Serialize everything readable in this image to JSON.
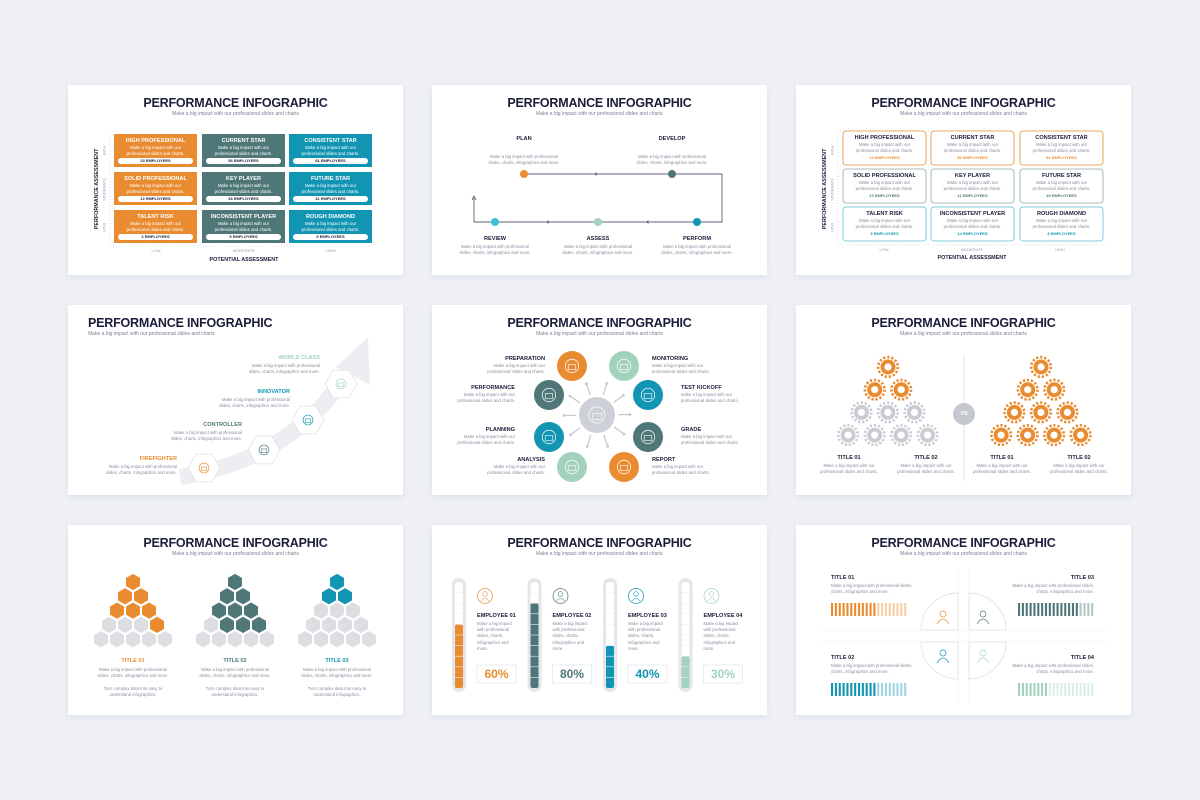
{
  "palette": {
    "orange": "#e98c31",
    "dark_teal": "#4f7778",
    "teal": "#1195b3",
    "mint": "#a3d2bc",
    "gray": "#d9dbe0",
    "navy": "#1b1d3a"
  },
  "common": {
    "title": "PERFORMANCE INFOGRAPHIC",
    "subtitle": "Make a big impact with our professional slides and charts",
    "desc": "Make a big impact with our professional slides and charts.",
    "desc_more": "Make a big impact with professional slides, charts, infographics and more.",
    "turn": "Turn complex data into easy to understand infographics."
  },
  "matrix_filled": {
    "y_axis": "PERFORMANCE ASSESSMENT",
    "x_axis": "POTENTIAL ASSESSMENT",
    "y_ticks": [
      "HIGH",
      "MODERATE",
      "LOW"
    ],
    "x_ticks": [
      "LOW",
      "MODERATE",
      "HIGH"
    ],
    "cells": [
      {
        "title": "HIGH PROFESSIONAL",
        "count": "23 EMPLOYEES"
      },
      {
        "title": "CURRENT STAR",
        "count": "56 EMPLOYEES"
      },
      {
        "title": "CONSISTENT STAR",
        "count": "81 EMPLOYEES"
      },
      {
        "title": "SOLID PROFESSIONAL",
        "count": "12 EMPLOYEES"
      },
      {
        "title": "KEY PLAYER",
        "count": "36 EMPLOYEES"
      },
      {
        "title": "FUTURE STAR",
        "count": "41 EMPLOYEES"
      },
      {
        "title": "TALENT RISK",
        "count": "2 EMPLOYEES"
      },
      {
        "title": "INCONSISTENT PLAYER",
        "count": "5 EMPLOYEES"
      },
      {
        "title": "ROUGH DIAMOND",
        "count": "9 EMPLOYEES"
      }
    ]
  },
  "process": {
    "steps": [
      {
        "label": "PLAN"
      },
      {
        "label": "DEVELOP"
      },
      {
        "label": "REVIEW"
      },
      {
        "label": "ASSESS"
      },
      {
        "label": "PERFORM"
      }
    ],
    "desc": "Make a big impact with professional slides, charts, infographics and more."
  },
  "matrix_outline": {
    "y_axis": "PERFORMANCE ASSESSMENT",
    "x_axis": "POTENTIAL ASSESSMENT",
    "y_ticks": [
      "HIGH",
      "MODERATE",
      "LOW"
    ],
    "x_ticks": [
      "LOW",
      "MODERATE",
      "HIGH"
    ],
    "cells": [
      {
        "title": "HIGH PROFESSIONAL",
        "count": "23 EMPLOYEES"
      },
      {
        "title": "CURRENT STAR",
        "count": "56 EMPLOYEES"
      },
      {
        "title": "CONSISTENT STAR",
        "count": "81 EMPLOYEES"
      },
      {
        "title": "SOLID PROFESSIONAL",
        "count": "23 EMPLOYEES"
      },
      {
        "title": "KEY PLAYER",
        "count": "11 EMPLOYEES"
      },
      {
        "title": "FUTURE STAR",
        "count": "45 EMPLOYEES"
      },
      {
        "title": "TALENT RISK",
        "count": "3 EMPLOYEES"
      },
      {
        "title": "INCONSISTENT PLAYER",
        "count": "14 EMPLOYEES"
      },
      {
        "title": "ROUGH DIAMOND",
        "count": "8 EMPLOYEES"
      }
    ]
  },
  "staircase": {
    "levels": [
      {
        "label": "FIREFIGHTER",
        "color": "#e98c31",
        "icon": "presentation-icon"
      },
      {
        "label": "CONTROLLER",
        "color": "#4f7778",
        "icon": "team-icon"
      },
      {
        "label": "INNOVATOR",
        "color": "#1195b3",
        "icon": "globe-monitor-icon"
      },
      {
        "label": "WORLD CLASS",
        "color": "#a3d2bc",
        "icon": "people-award-icon"
      }
    ]
  },
  "cycle": {
    "items": [
      {
        "label": "PREPARATION",
        "color": "#e98c31",
        "icon": "laptop-chart-icon"
      },
      {
        "label": "MONITORING",
        "color": "#a3d2bc",
        "icon": "phone-chat-icon"
      },
      {
        "label": "PERFORMANCE",
        "color": "#4f7778",
        "icon": "rocket-icon"
      },
      {
        "label": "TEST KICKOFF",
        "color": "#1195b3",
        "icon": "report-search-icon"
      },
      {
        "label": "PLANNING",
        "color": "#1195b3",
        "icon": "arrow-up-circle-icon"
      },
      {
        "label": "GRADE",
        "color": "#4f7778",
        "icon": "phone-gear-icon"
      },
      {
        "label": "ANALYSIS",
        "color": "#a3d2bc",
        "icon": "chat-bubbles-icon"
      },
      {
        "label": "REPORT",
        "color": "#e98c31",
        "icon": "target-click-icon"
      }
    ],
    "center_icon": "team-network-icon"
  },
  "gears": {
    "vs": "VS",
    "titles": [
      "TITLE 01",
      "TITLE 02",
      "TITLE 01",
      "TITLE 02"
    ],
    "left_orange_rows": 2,
    "right_orange_rows": 4
  },
  "hex": {
    "items": [
      {
        "title": "TITLE 01",
        "color": "#e98c31",
        "filled": 7
      },
      {
        "title": "TITLE 02",
        "color": "#4f7778",
        "filled": 9
      },
      {
        "title": "TITLE 03",
        "color": "#1195b3",
        "filled": 3
      }
    ]
  },
  "tubes": {
    "items": [
      {
        "name": "EMPLOYEE 01",
        "value": "60%",
        "level": 60,
        "color": "#e98c31"
      },
      {
        "name": "EMPLOYEE 02",
        "value": "80%",
        "level": 80,
        "color": "#4f7778"
      },
      {
        "name": "EMPLOYEE 03",
        "value": "40%",
        "level": 40,
        "color": "#1195b3"
      },
      {
        "name": "EMPLOYEE 04",
        "value": "30%",
        "level": 30,
        "color": "#a3d2bc"
      }
    ],
    "desc": "Make a big impact with professional slides, charts, infographics and more."
  },
  "quadrants": {
    "items": [
      {
        "title": "TITLE 01",
        "color": "#e98c31",
        "light": "#f6cfa6",
        "filled_bars": 12,
        "of": 20
      },
      {
        "title": "TITLE 03",
        "color": "#4f7778",
        "light": "#b3c6c6",
        "filled_bars": 16,
        "of": 20
      },
      {
        "title": "TITLE 02",
        "color": "#1195b3",
        "light": "#9fd4e2",
        "filled_bars": 12,
        "of": 20
      },
      {
        "title": "TITLE 04",
        "color": "#a3d2bc",
        "light": "#dcefe5",
        "filled_bars": 8,
        "of": 20
      }
    ]
  }
}
